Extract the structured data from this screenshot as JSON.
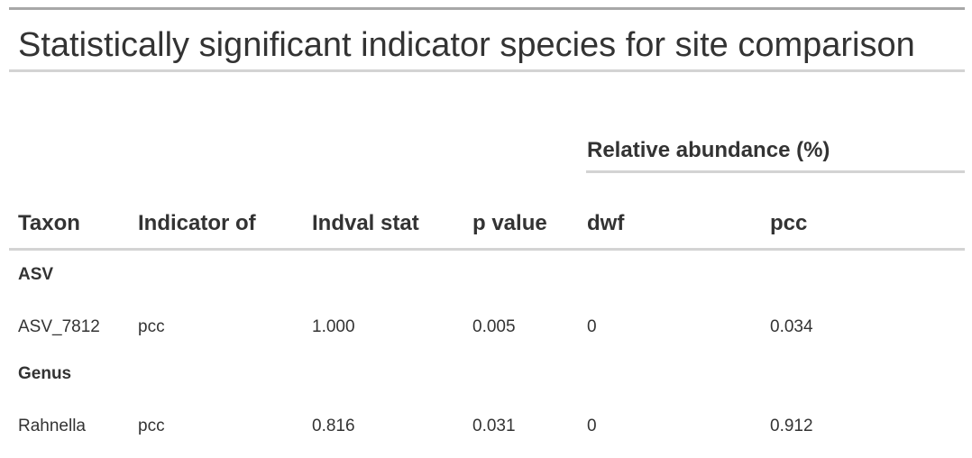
{
  "table": {
    "title": "Statistically significant indicator species for site comparison",
    "spanner": "Relative abundance (%)",
    "columns": [
      "Taxon",
      "Indicator of",
      "Indval stat",
      "p value",
      "dwf",
      "pcc"
    ],
    "groups": [
      {
        "label": "ASV",
        "rows": [
          [
            "ASV_7812",
            "pcc",
            "1.000",
            "0.005",
            "0",
            "0.034"
          ]
        ]
      },
      {
        "label": "Genus",
        "rows": [
          [
            "Rahnella",
            "pcc",
            "0.816",
            "0.031",
            "0",
            "0.912"
          ]
        ]
      }
    ]
  }
}
